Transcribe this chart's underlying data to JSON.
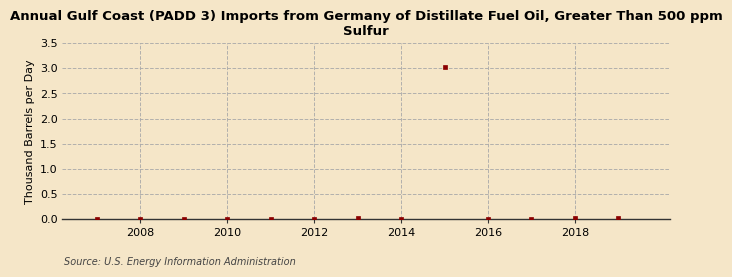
{
  "title": "Annual Gulf Coast (PADD 3) Imports from Germany of Distillate Fuel Oil, Greater Than 500 ppm\nSulfur",
  "ylabel": "Thousand Barrels per Day",
  "source": "Source: U.S. Energy Information Administration",
  "background_color": "#f5e6c8",
  "plot_background_color": "#f5e6c8",
  "years": [
    2007,
    2008,
    2009,
    2010,
    2011,
    2012,
    2013,
    2014,
    2015,
    2016,
    2017,
    2018,
    2019
  ],
  "values": [
    0.0,
    0.0,
    0.0,
    0.0,
    0.0,
    0.0,
    0.03,
    0.0,
    3.02,
    0.0,
    0.0,
    0.03,
    0.03
  ],
  "marker_color": "#8b0000",
  "grid_color": "#aaaaaa",
  "ylim": [
    0,
    3.5
  ],
  "yticks": [
    0.0,
    0.5,
    1.0,
    1.5,
    2.0,
    2.5,
    3.0,
    3.5
  ],
  "xlim": [
    2006.2,
    2020.2
  ],
  "xticks": [
    2008,
    2010,
    2012,
    2014,
    2016,
    2018
  ],
  "title_fontsize": 9.5,
  "ylabel_fontsize": 8,
  "tick_fontsize": 8,
  "source_fontsize": 7
}
